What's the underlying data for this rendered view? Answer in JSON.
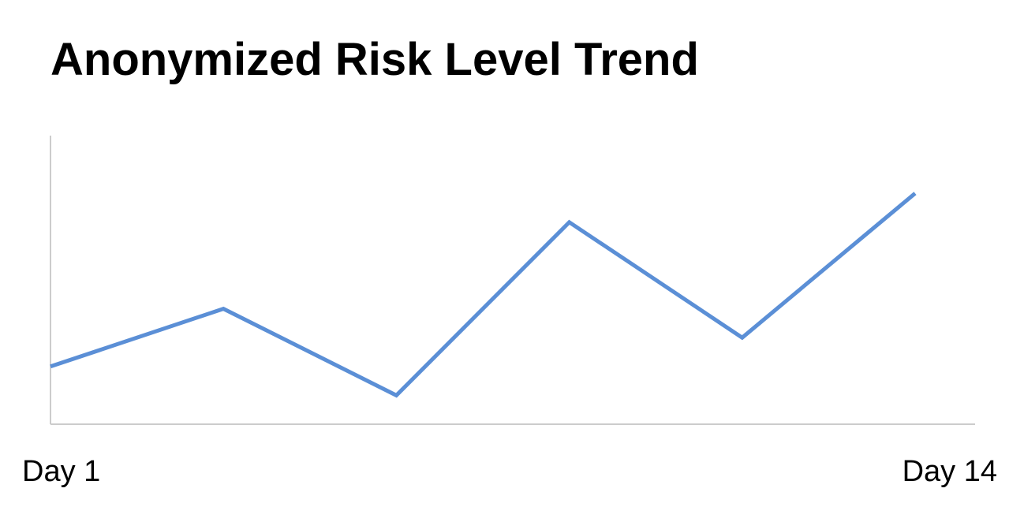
{
  "chart_data": {
    "type": "line",
    "title": "Anonymized Risk Level Trend",
    "xlabel": "",
    "ylabel": "",
    "x_tick_labels": [
      "Day 1",
      "Day 14"
    ],
    "y_ticks_shown": false,
    "grid": false,
    "legend": "none",
    "ylim": [
      0,
      10
    ],
    "series": [
      {
        "color": "#5b8fd6",
        "points": [
          {
            "x": 0,
            "y": 2.0
          },
          {
            "x": 2.6,
            "y": 4.0
          },
          {
            "x": 5.2,
            "y": 1.0
          },
          {
            "x": 7.8,
            "y": 7.0
          },
          {
            "x": 10.4,
            "y": 3.0
          },
          {
            "x": 13,
            "y": 8.0
          }
        ]
      }
    ],
    "axis_color": "#cccccc"
  }
}
